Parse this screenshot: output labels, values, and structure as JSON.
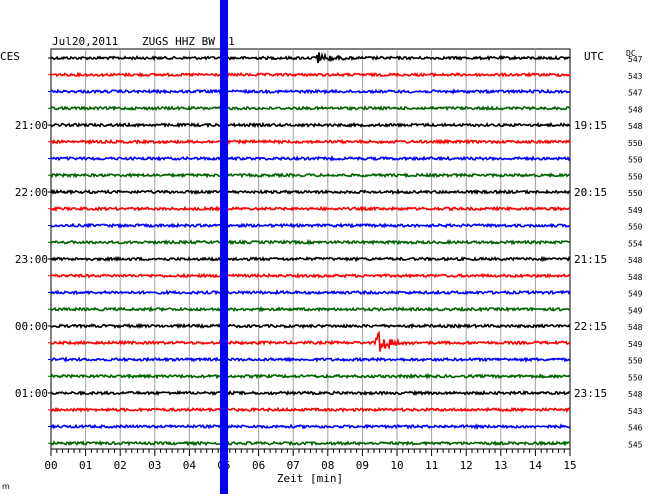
{
  "header": {
    "date": "Jul20,2011",
    "station": "ZUGS HHZ BW 01",
    "left_zone": "CES",
    "right_zone": "UTC",
    "dc_label": "DC"
  },
  "x_axis": {
    "label": "Zeit [min]",
    "ticks": [
      "00",
      "01",
      "02",
      "03",
      "04",
      "05",
      "06",
      "07",
      "08",
      "09",
      "10",
      "11",
      "12",
      "13",
      "14",
      "15"
    ]
  },
  "left_times": [
    {
      "label": "21:00",
      "trace": 4
    },
    {
      "label": "22:00",
      "trace": 8
    },
    {
      "label": "23:00",
      "trace": 12
    },
    {
      "label": "00:00",
      "trace": 16
    },
    {
      "label": "01:00",
      "trace": 20
    }
  ],
  "right_times": [
    {
      "label": "19:15",
      "trace": 4
    },
    {
      "label": "20:15",
      "trace": 8
    },
    {
      "label": "21:15",
      "trace": 12
    },
    {
      "label": "22:15",
      "trace": 16
    },
    {
      "label": "23:15",
      "trace": 20
    }
  ],
  "dc_values": [
    "547",
    "543",
    "547",
    "548",
    "548",
    "550",
    "550",
    "550",
    "550",
    "549",
    "550",
    "554",
    "548",
    "548",
    "549",
    "549",
    "548",
    "549",
    "550",
    "550",
    "548",
    "543",
    "546",
    "545"
  ],
  "trace_colors": [
    "#000000",
    "#ff0000",
    "#0000ff",
    "#006400"
  ],
  "marker": {
    "minute": 5.0,
    "color": "#0000ff"
  },
  "events": [
    {
      "trace": 0,
      "minute": 7.7,
      "amplitude": 6
    },
    {
      "trace": 17,
      "minute": 9.45,
      "amplitude": 11
    }
  ],
  "corner_mark": "ⅿ"
}
